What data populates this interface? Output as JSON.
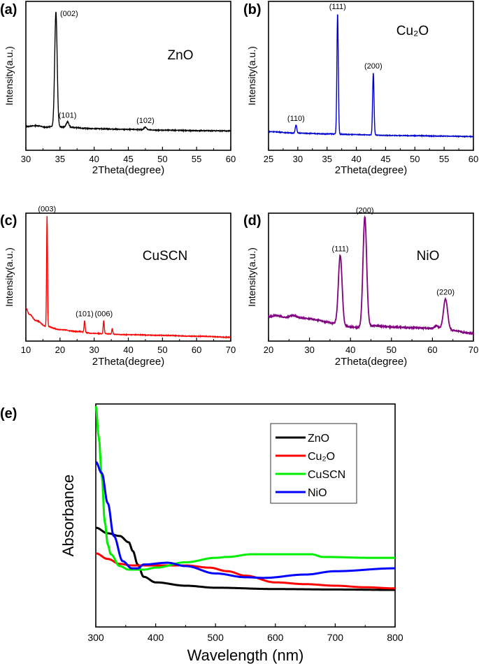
{
  "chart_data": [
    {
      "panel_label": "(a)",
      "type": "line",
      "title": "ZnO",
      "xlabel": "2Theta(degree)",
      "ylabel": "Intensity(a.u.)",
      "xlim": [
        30,
        60
      ],
      "ylim": [
        0,
        100
      ],
      "xticks": [
        30,
        35,
        40,
        45,
        50,
        55,
        60
      ],
      "color": "#000000",
      "baseline": [
        [
          30,
          16
        ],
        [
          31.5,
          16.5
        ],
        [
          33,
          15.5
        ],
        [
          34,
          16
        ],
        [
          36,
          15.5
        ],
        [
          40,
          14.5
        ],
        [
          45,
          14
        ],
        [
          50,
          13.5
        ],
        [
          55,
          13.2
        ],
        [
          60,
          13
        ]
      ],
      "peaks": [
        {
          "x": 34.4,
          "y": 93,
          "label": "(002)"
        },
        {
          "x": 36.1,
          "y": 19,
          "label": "(101)"
        },
        {
          "x": 47.5,
          "y": 15.5,
          "label": "(102)"
        }
      ]
    },
    {
      "panel_label": "(b)",
      "type": "line",
      "title": "Cu₂O",
      "xlabel": "2Theta(degree)",
      "ylabel": "Intensity(a.u.)",
      "xlim": [
        25,
        60
      ],
      "ylim": [
        0,
        100
      ],
      "xticks": [
        25,
        30,
        35,
        40,
        45,
        50,
        55,
        60
      ],
      "color": "#0000cc",
      "baseline": [
        [
          25,
          12.5
        ],
        [
          30,
          11.5
        ],
        [
          35,
          11
        ],
        [
          40,
          10.5
        ],
        [
          45,
          10
        ],
        [
          50,
          9.8
        ],
        [
          55,
          9.5
        ],
        [
          60,
          9.2
        ]
      ],
      "peaks": [
        {
          "x": 29.7,
          "y": 17,
          "label": "(110)"
        },
        {
          "x": 36.8,
          "y": 92,
          "label": "(111)"
        },
        {
          "x": 42.9,
          "y": 52,
          "label": "(200)"
        }
      ]
    },
    {
      "panel_label": "(c)",
      "type": "line",
      "title": "CuSCN",
      "xlabel": "2Theta(degree)",
      "ylabel": "Intensity(a.u.)",
      "xlim": [
        10,
        70
      ],
      "ylim": [
        0,
        100
      ],
      "xticks": [
        10,
        20,
        30,
        40,
        50,
        60,
        70
      ],
      "color": "#ff0000",
      "baseline": [
        [
          10,
          26
        ],
        [
          11,
          21
        ],
        [
          13,
          16
        ],
        [
          16,
          11.5
        ],
        [
          20,
          9
        ],
        [
          25,
          7.5
        ],
        [
          30,
          6
        ],
        [
          40,
          5
        ],
        [
          50,
          4.5
        ],
        [
          60,
          3.8
        ],
        [
          70,
          3
        ]
      ],
      "peaks": [
        {
          "x": 16.2,
          "y": 98,
          "label": "(003)"
        },
        {
          "x": 27.2,
          "y": 16,
          "label": "(101)"
        },
        {
          "x": 32.8,
          "y": 16,
          "label": "(006)"
        },
        {
          "x": 35.3,
          "y": 10,
          "label": ""
        }
      ]
    },
    {
      "panel_label": "(d)",
      "type": "line",
      "title": "NiO",
      "xlabel": "2Theta(degree)",
      "ylabel": "Intensity(a.u.)",
      "xlim": [
        20,
        70
      ],
      "ylim": [
        0,
        100
      ],
      "xticks": [
        20,
        30,
        40,
        50,
        60,
        70
      ],
      "color": "#800080",
      "baseline": [
        [
          20,
          19
        ],
        [
          22,
          20
        ],
        [
          24,
          18.5
        ],
        [
          26,
          20
        ],
        [
          28,
          18
        ],
        [
          30,
          17.5
        ],
        [
          32,
          16.5
        ],
        [
          34,
          15
        ],
        [
          36,
          14
        ],
        [
          40,
          11
        ],
        [
          42,
          10.5
        ],
        [
          46,
          12
        ],
        [
          50,
          11
        ],
        [
          55,
          10.5
        ],
        [
          60,
          10
        ],
        [
          61,
          12
        ],
        [
          62,
          10
        ],
        [
          66,
          8
        ],
        [
          68,
          6.5
        ],
        [
          70,
          6
        ]
      ],
      "peaks": [
        {
          "x": 37.5,
          "y": 67,
          "label": "(111)"
        },
        {
          "x": 43.5,
          "y": 97,
          "label": "(200)"
        },
        {
          "x": 63.2,
          "y": 33,
          "label": "(220)"
        }
      ]
    },
    {
      "panel_label": "(e)",
      "type": "line",
      "xlabel": "Wavelength (nm)",
      "ylabel": "Absorbance",
      "xlim": [
        300,
        800
      ],
      "ylim": [
        0,
        100
      ],
      "xticks": [
        300,
        400,
        500,
        600,
        700,
        800
      ],
      "legend_position": "top-right",
      "series": [
        {
          "name": "ZnO",
          "color": "#000000",
          "points": [
            [
              300,
              44.5
            ],
            [
              320,
              42
            ],
            [
              340,
              40.8
            ],
            [
              355,
              38
            ],
            [
              362,
              34
            ],
            [
              370,
              28
            ],
            [
              380,
              22.5
            ],
            [
              400,
              20
            ],
            [
              450,
              18.5
            ],
            [
              500,
              17.6
            ],
            [
              600,
              17
            ],
            [
              700,
              16.8
            ],
            [
              800,
              16.6
            ]
          ]
        },
        {
          "name": "Cu₂O",
          "color": "#ff0000",
          "points": [
            [
              300,
              33
            ],
            [
              320,
              30.5
            ],
            [
              340,
              28.3
            ],
            [
              360,
              27.6
            ],
            [
              450,
              27.6
            ],
            [
              490,
              26.6
            ],
            [
              520,
              25
            ],
            [
              550,
              23
            ],
            [
              600,
              20
            ],
            [
              650,
              19.2
            ],
            [
              700,
              18.5
            ],
            [
              750,
              17.8
            ],
            [
              800,
              17.3
            ]
          ]
        },
        {
          "name": "CuSCN",
          "color": "#00ee00",
          "points": [
            [
              300,
              99
            ],
            [
              305,
              85
            ],
            [
              310,
              68
            ],
            [
              315,
              47
            ],
            [
              320,
              37
            ],
            [
              325,
              32.6
            ],
            [
              340,
              27.3
            ],
            [
              355,
              25.7
            ],
            [
              380,
              25.7
            ],
            [
              400,
              26.6
            ],
            [
              450,
              29
            ],
            [
              500,
              31
            ],
            [
              520,
              31.4
            ],
            [
              560,
              32.6
            ],
            [
              660,
              32.6
            ],
            [
              680,
              31.4
            ],
            [
              760,
              31
            ],
            [
              800,
              31
            ]
          ]
        },
        {
          "name": "NiO",
          "color": "#0000ff",
          "points": [
            [
              300,
              74
            ],
            [
              310,
              69
            ],
            [
              320,
              55.5
            ],
            [
              330,
              40.8
            ],
            [
              345,
              29.5
            ],
            [
              360,
              26.3
            ],
            [
              370,
              26.3
            ],
            [
              380,
              28
            ],
            [
              420,
              28.8
            ],
            [
              450,
              27.3
            ],
            [
              500,
              24
            ],
            [
              550,
              22.3
            ],
            [
              580,
              22
            ],
            [
              650,
              23.5
            ],
            [
              700,
              25
            ],
            [
              800,
              26.3
            ]
          ]
        }
      ]
    }
  ]
}
